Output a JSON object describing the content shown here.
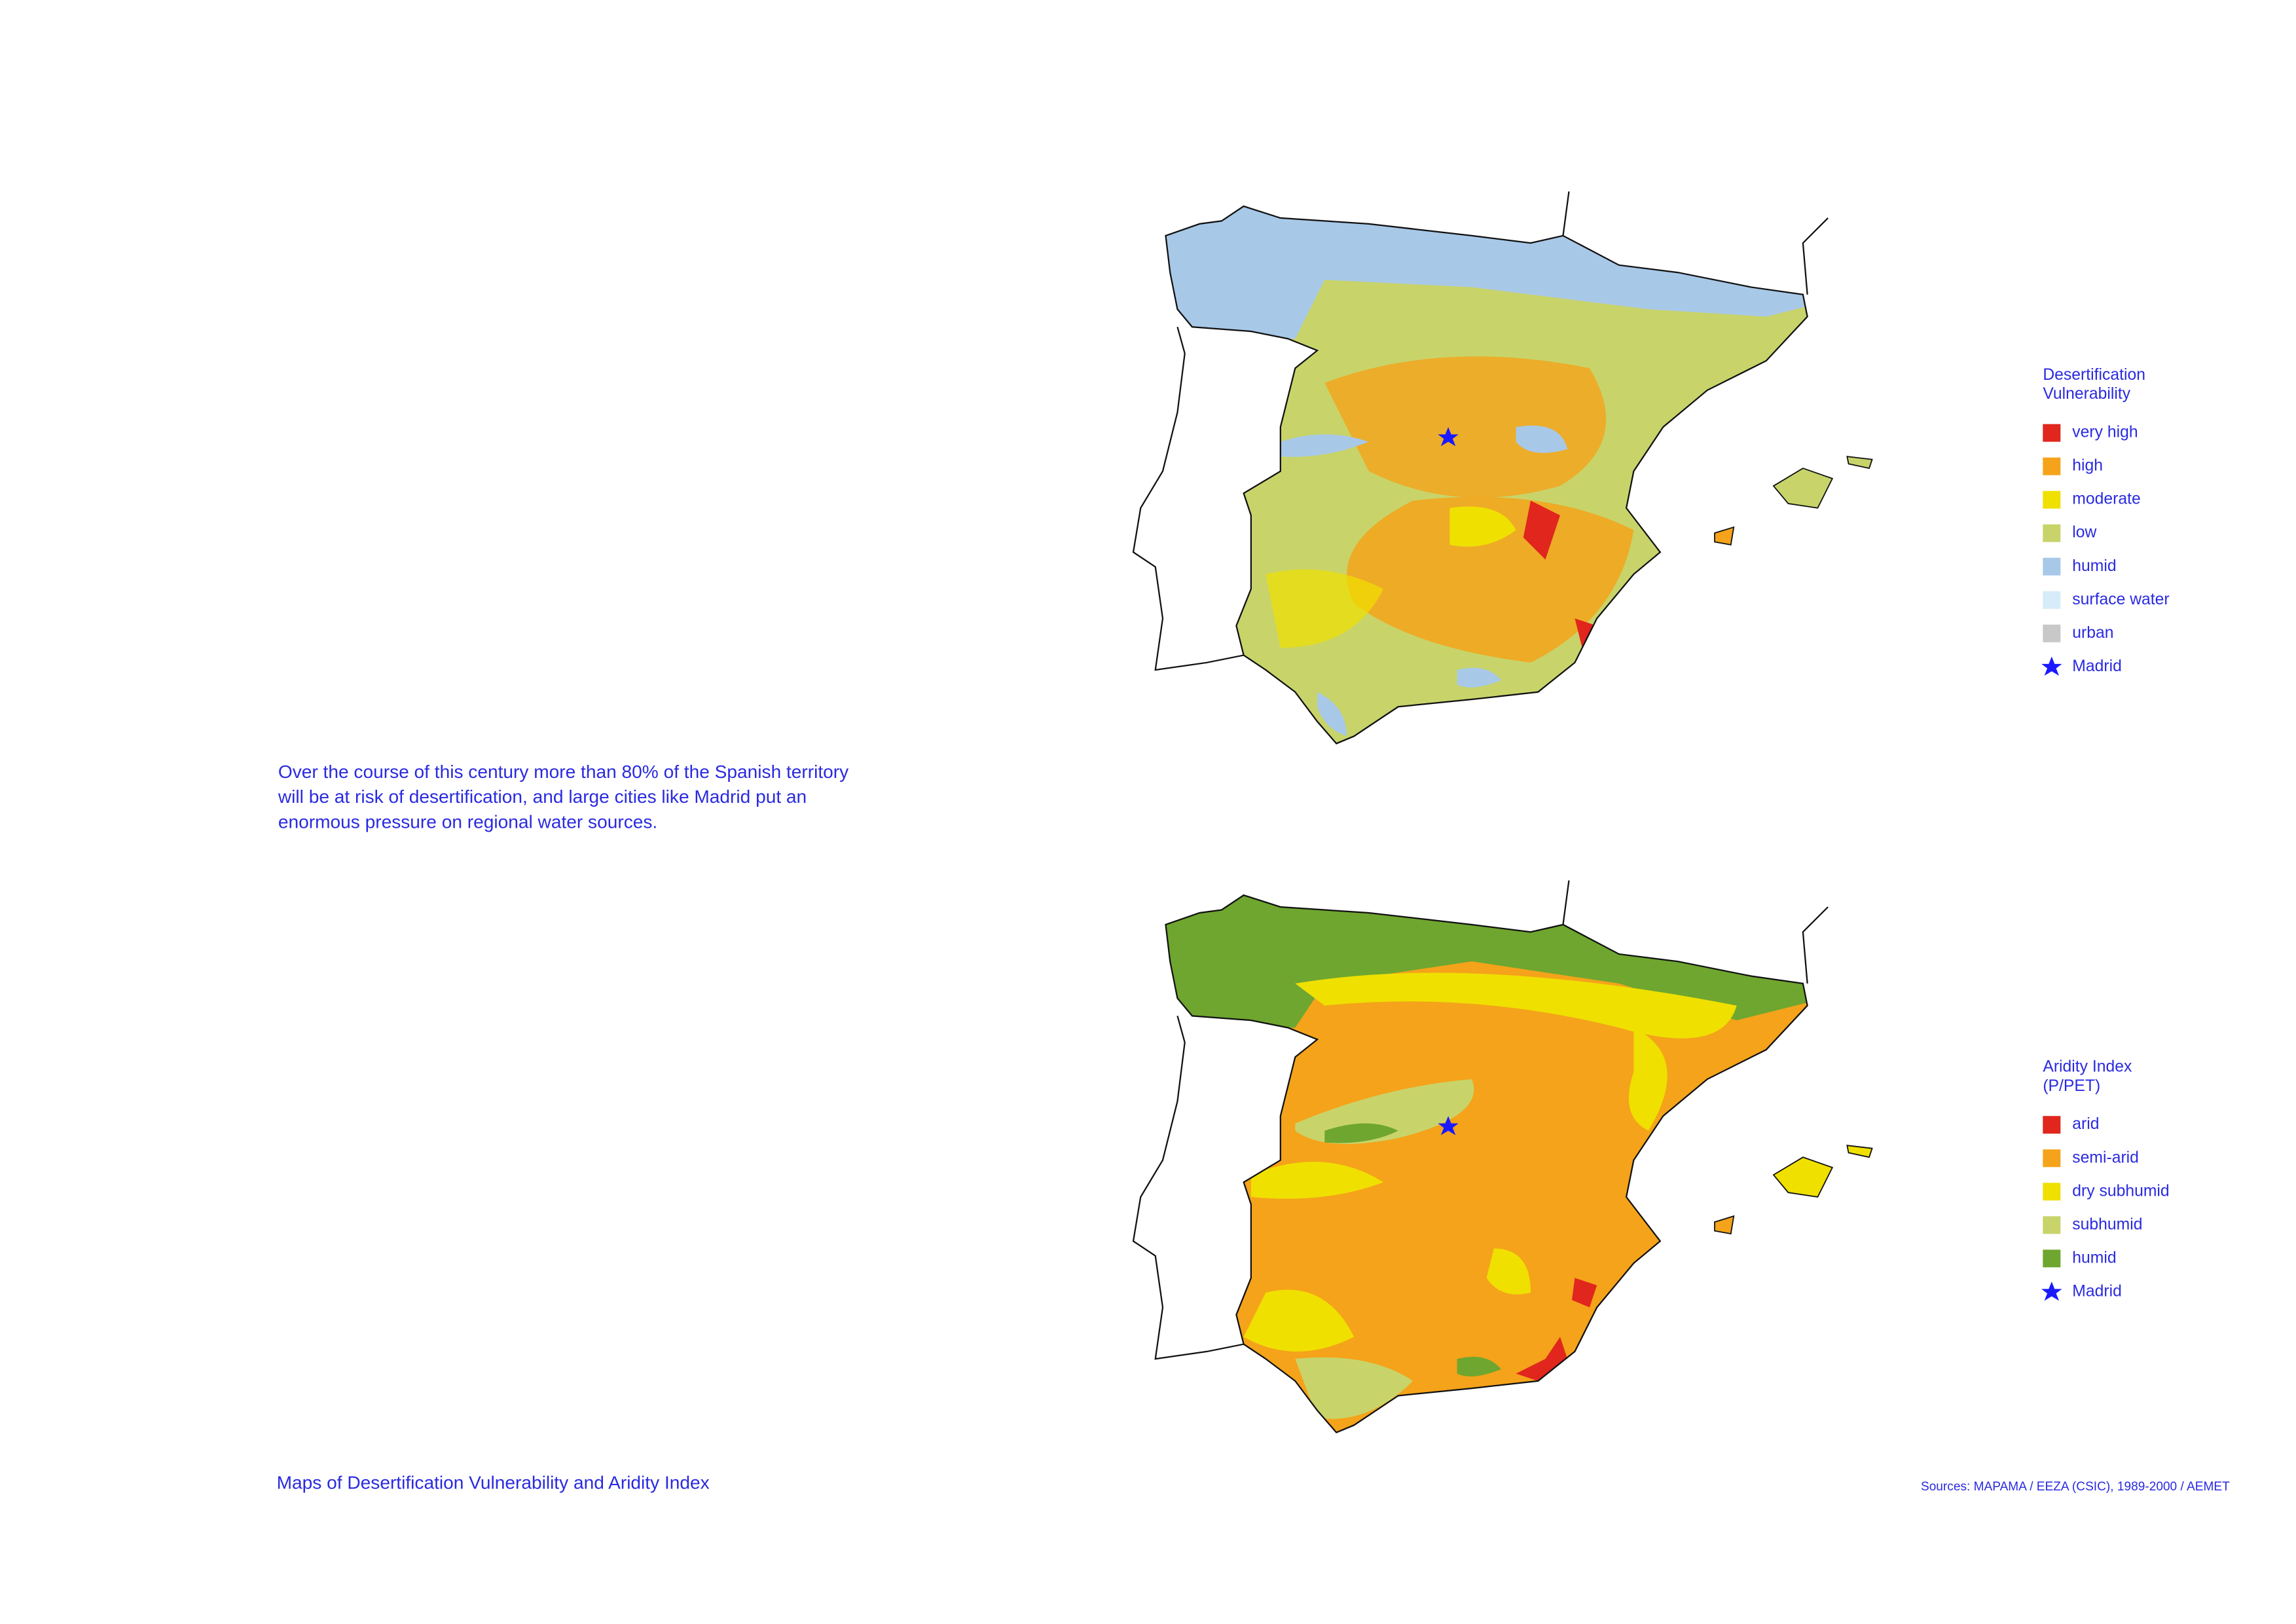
{
  "description": {
    "lines": [
      "Over the course of this century more than 80% of the Spanish territory",
      "will be at risk of desertification, and large cities like Madrid put an",
      "enormous pressure on regional water sources."
    ]
  },
  "caption": "Maps of Desertification Vulnerability and Aridity Index",
  "sources": "Sources: MAPAMA / EEZA (CSIC), 1989-2000 / AEMET",
  "maps": [
    {
      "legend_title_lines": [
        "Desertification",
        "Vulnerability"
      ],
      "legend": [
        {
          "label": "very high",
          "color": "#e0261d"
        },
        {
          "label": "high",
          "color": "#f5a31a"
        },
        {
          "label": "moderate",
          "color": "#efe000"
        },
        {
          "label": "low",
          "color": "#c8d46a"
        },
        {
          "label": "humid",
          "color": "#a8c8e8"
        },
        {
          "label": "surface water",
          "color": "#d6ecf8"
        },
        {
          "label": "urban",
          "color": "#c8c8c8"
        }
      ],
      "marker_label": "Madrid"
    },
    {
      "legend_title_lines": [
        "Aridity Index",
        "(P/PET)"
      ],
      "legend": [
        {
          "label": "arid",
          "color": "#e0261d"
        },
        {
          "label": "semi-arid",
          "color": "#f5a31a"
        },
        {
          "label": "dry subhumid",
          "color": "#efe000"
        },
        {
          "label": "subhumid",
          "color": "#c8d46a"
        },
        {
          "label": "humid",
          "color": "#6fa62f"
        }
      ],
      "marker_label": "Madrid"
    }
  ]
}
